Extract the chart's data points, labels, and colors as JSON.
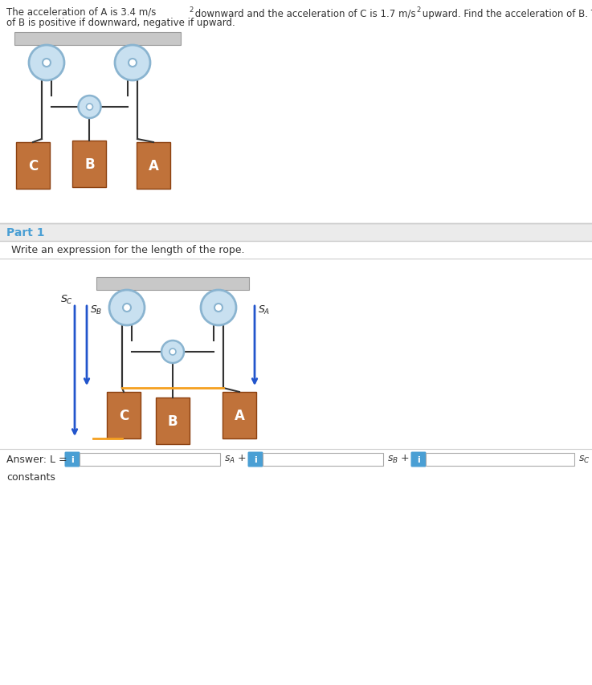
{
  "title_line1": "The acceleration of A is 3.4 m/s",
  "title_sup": "2",
  "title_line2": " downward and the acceleration of C is 1.7 m/s",
  "title_sup2": "2",
  "title_line3": " upward. Find the acceleration of B. The acceleration",
  "title_line4": "of B is positive if downward, negative if upward.",
  "part1_label": "Part 1",
  "part1_question": "Write an expression for the length of the rope.",
  "answer_label": "Answer: L =",
  "bg_color": "#ffffff",
  "part_bg": "#ebebeb",
  "blue_color": "#4a9fd4",
  "block_color": "#c0723a",
  "block_edge": "#8b4010",
  "ceiling_color": "#c8c8c8",
  "ceiling_edge": "#999999",
  "pulley_outer": "#8ab4d0",
  "pulley_inner": "#c8e0f0",
  "rope_color": "#333333",
  "orange_line": "#f5a020",
  "arrow_color": "#2255cc",
  "divider_color": "#cccccc",
  "white": "#ffffff",
  "input_edge": "#aaaaaa",
  "text_color": "#333333"
}
